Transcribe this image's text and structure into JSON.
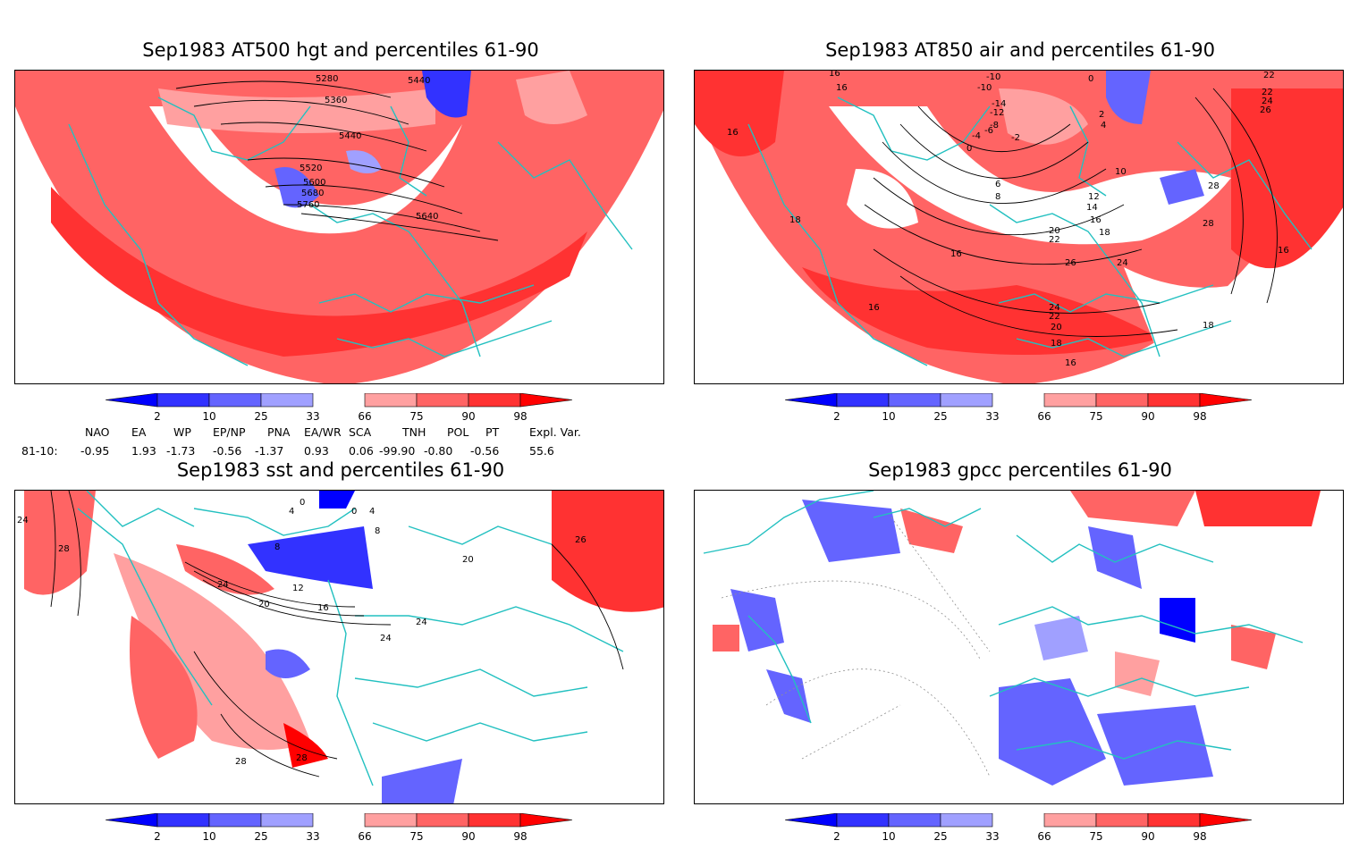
{
  "panels": [
    {
      "id": "hgt500",
      "title": "Sep1983 AT500 hgt and percentiles 61-90",
      "contour_labels": [
        "5280",
        "5360",
        "5440",
        "5440",
        "5520",
        "5600",
        "5680",
        "5760",
        "5640"
      ]
    },
    {
      "id": "air850",
      "title": "Sep1983 AT850 air and percentiles 61-90",
      "contour_labels": [
        "16",
        "16",
        "-10",
        "-10",
        "-12",
        "-14",
        "-4",
        "-6",
        "-8",
        "-2",
        "0",
        "0",
        "2",
        "4",
        "22",
        "22",
        "24",
        "26",
        "10",
        "6",
        "8",
        "12",
        "14",
        "16",
        "18",
        "20",
        "22",
        "28",
        "28",
        "16",
        "24",
        "26",
        "16",
        "16",
        "24",
        "22",
        "20",
        "18",
        "18",
        "16",
        "18",
        "16"
      ]
    },
    {
      "id": "sst",
      "title": "Sep1983 sst and percentiles 61-90",
      "contour_labels": [
        "24",
        "28",
        "0",
        "4",
        "8",
        "0",
        "4",
        "8",
        "12",
        "16",
        "20",
        "24",
        "24",
        "20",
        "24",
        "28",
        "28",
        "26"
      ]
    },
    {
      "id": "gpcc",
      "title": "Sep1983 gpcc percentiles 61-90",
      "contour_labels": []
    }
  ],
  "colorbar": {
    "labels": [
      "2",
      "10",
      "25",
      "33",
      "66",
      "75",
      "90",
      "98"
    ],
    "colors": {
      "below2": "#0000ff",
      "b2_10": "#3232ff",
      "b10_25": "#6464ff",
      "b25_33": "#a0a0ff",
      "a66_75": "#ffa0a0",
      "a75_90": "#ff6464",
      "a90_98": "#ff3232",
      "above98": "#ff0000"
    }
  },
  "indices": {
    "headers": [
      "NAO",
      "EA",
      "WP",
      "EP/NP",
      "PNA",
      "EA/WR",
      "SCA",
      "TNH",
      "POL",
      "PT",
      "Expl. Var."
    ],
    "row_label": "81-10:",
    "values": [
      "-0.95",
      "1.93",
      "-1.73",
      "-0.56",
      "-1.37",
      "0.93",
      "0.06",
      "-99.90",
      "-0.80",
      "-0.56",
      "55.6"
    ]
  },
  "colors": {
    "coast": "#22c0c0",
    "contour": "#000000",
    "grid": "#909090"
  }
}
